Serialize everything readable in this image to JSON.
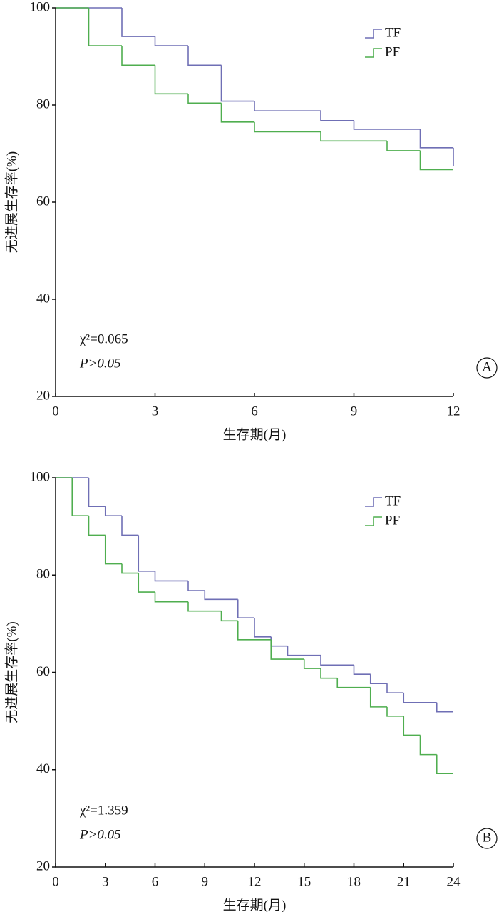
{
  "chart_data": [
    {
      "type": "step",
      "panel": "A",
      "x_label": "生存期(月)",
      "y_label": "无进展生存率(%)",
      "annotations": [
        "χ²=0.065",
        "P>0.05"
      ],
      "xlim": [
        0,
        12
      ],
      "xticks": [
        0,
        3,
        6,
        9,
        12
      ],
      "ylim": [
        20,
        100
      ],
      "yticks": [
        20,
        40,
        60,
        80,
        100
      ],
      "series": [
        {
          "name": "TF",
          "color": "#6f6fb5",
          "x": [
            0,
            2,
            3,
            4,
            5,
            6,
            8,
            9,
            11,
            12
          ],
          "values": [
            100,
            94.1,
            92.2,
            88.2,
            80.8,
            78.8,
            76.8,
            75,
            71.2,
            67.5
          ]
        },
        {
          "name": "PF",
          "color": "#4fae4f",
          "x": [
            0,
            1,
            2,
            3,
            4,
            5,
            6,
            8,
            10,
            11,
            12
          ],
          "values": [
            100,
            92.2,
            88.2,
            82.3,
            80.4,
            76.5,
            74.5,
            72.6,
            70.6,
            66.7,
            66.7
          ]
        }
      ]
    },
    {
      "type": "step",
      "panel": "B",
      "x_label": "生存期(月)",
      "y_label": "无进展生存率(%)",
      "annotations": [
        "χ²=1.359",
        "P>0.05"
      ],
      "xlim": [
        0,
        24
      ],
      "xticks": [
        0,
        3,
        6,
        9,
        12,
        15,
        18,
        21,
        24
      ],
      "ylim": [
        20,
        100
      ],
      "yticks": [
        20,
        40,
        60,
        80,
        100
      ],
      "series": [
        {
          "name": "TF",
          "color": "#6f6fb5",
          "x": [
            0,
            2,
            3,
            4,
            5,
            6,
            8,
            9,
            11,
            12,
            13,
            14,
            16,
            18,
            19,
            20,
            21,
            23,
            24
          ],
          "values": [
            100,
            94.1,
            92.2,
            88.2,
            80.8,
            78.8,
            76.8,
            75,
            71.2,
            67.3,
            65.4,
            63.5,
            61.5,
            59.6,
            57.7,
            55.8,
            53.8,
            51.9,
            51.9
          ]
        },
        {
          "name": "PF",
          "color": "#4fae4f",
          "x": [
            0,
            1,
            2,
            3,
            4,
            5,
            6,
            8,
            10,
            11,
            13,
            15,
            16,
            17,
            19,
            20,
            21,
            22,
            23,
            24
          ],
          "values": [
            100,
            92.2,
            88.2,
            82.3,
            80.4,
            76.5,
            74.5,
            72.6,
            70.6,
            66.7,
            62.7,
            60.8,
            58.8,
            56.9,
            52.9,
            51,
            47.1,
            43.1,
            39.2,
            39.2
          ]
        }
      ]
    }
  ]
}
